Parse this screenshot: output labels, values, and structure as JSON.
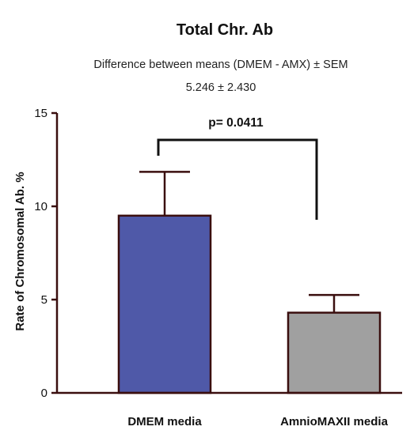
{
  "chart_data": {
    "type": "bar",
    "title": "Total Chr. Ab",
    "subtitle_line1": "Difference between means (DMEM - AMX) ± SEM",
    "subtitle_line2": "5.246 ± 2.430",
    "ylabel": "Rate of Chromosomal Ab. %",
    "xlabel": "",
    "ylim": [
      0,
      15
    ],
    "yticks": [
      0,
      5,
      10,
      15
    ],
    "categories": [
      "DMEM media",
      "AmnioMAXII media"
    ],
    "values": [
      9.5,
      4.3
    ],
    "errors": [
      2.35,
      0.95
    ],
    "bar_colors": [
      "#4f59a8",
      "#a0a0a0"
    ],
    "significance": {
      "label": "p= 0.0411"
    },
    "grid": false,
    "legend": "none"
  }
}
